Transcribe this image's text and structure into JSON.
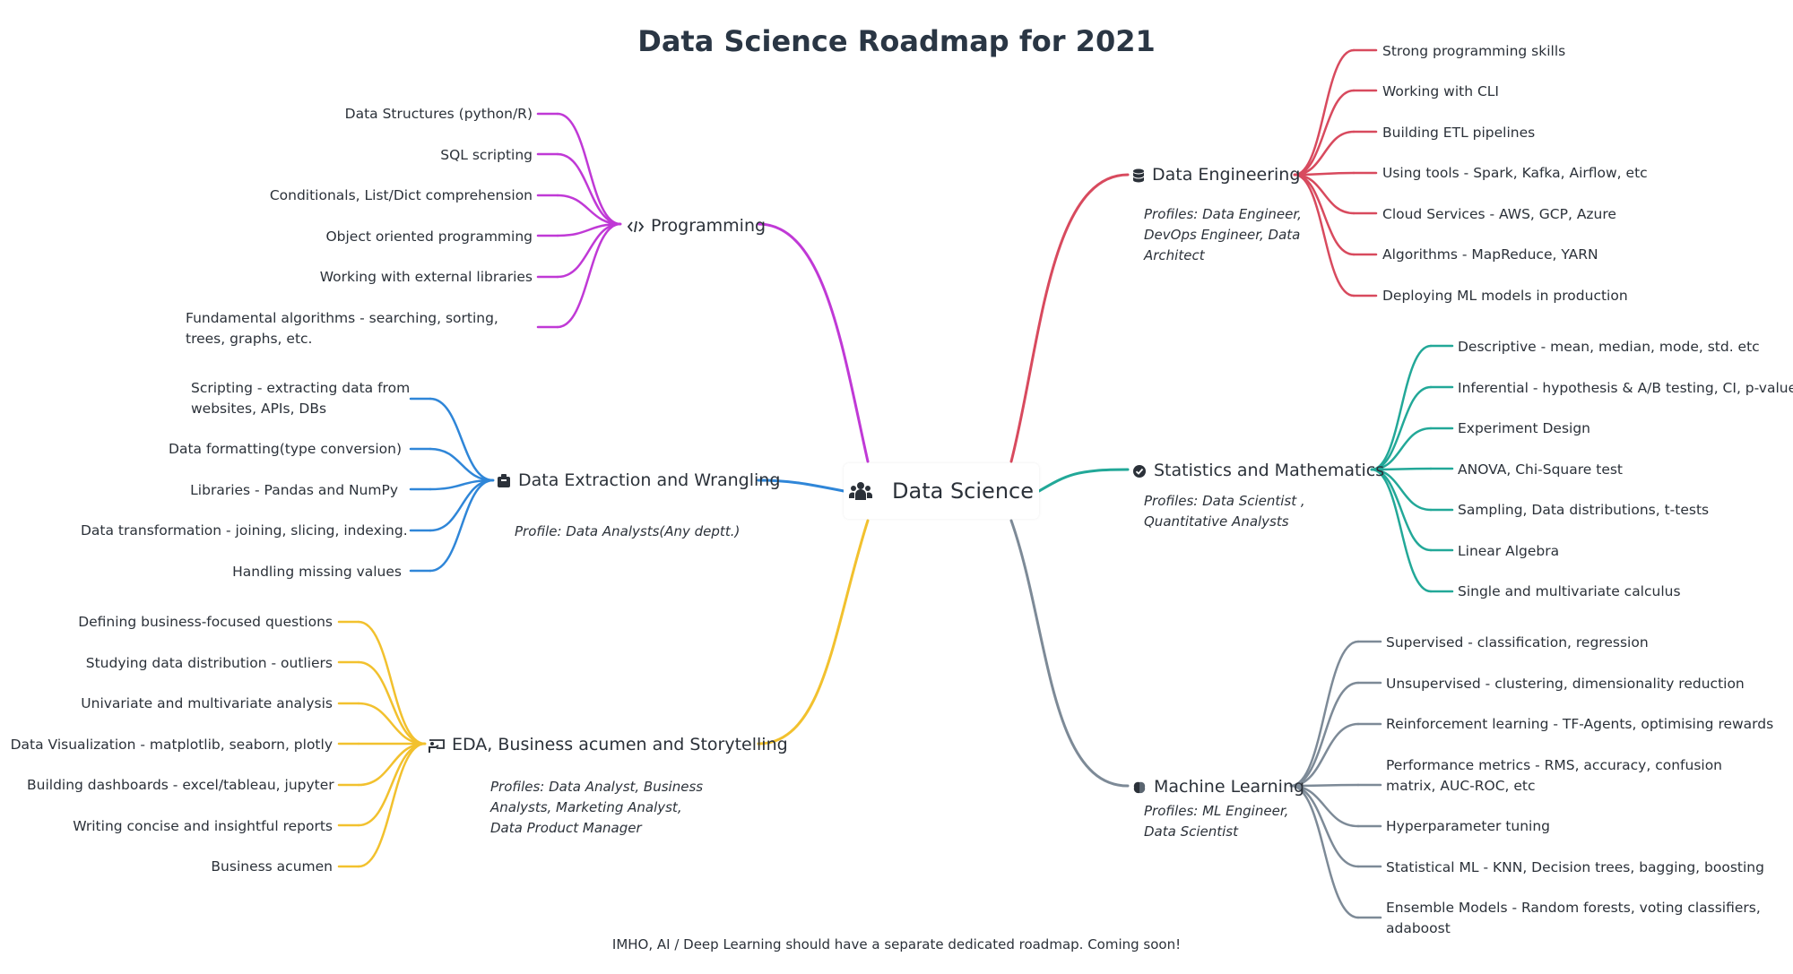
{
  "title": "Data Science Roadmap for 2021",
  "center": {
    "label": "Data Science",
    "icon": "people-group-icon"
  },
  "footer": "IMHO, AI / Deep Learning should have a separate dedicated roadmap. Coming soon!",
  "colors": {
    "programming": "#c039d6",
    "extraction": "#2f86d8",
    "eda": "#f2c12e",
    "engineering": "#d84a5e",
    "statistics": "#22a898",
    "ml": "#7d8a97",
    "text": "#2b3139",
    "title": "#2a3644"
  },
  "branches": {
    "programming": {
      "label": "Programming",
      "icon": "code-icon",
      "items": [
        "Data Structures (python/R)",
        "SQL scripting",
        "Conditionals, List/Dict comprehension",
        "Object oriented programming",
        "Working with external libraries",
        "Fundamental algorithms - searching, sorting, trees, graphs, etc."
      ]
    },
    "extraction": {
      "label": "Data Extraction and Wrangling",
      "icon": "archive-icon",
      "profile": "Profile: Data Analysts(Any deptt.)",
      "items": [
        "Scripting - extracting data from websites, APIs, DBs",
        "Data formatting(type conversion)",
        "Libraries - Pandas and NumPy",
        "Data transformation - joining, slicing, indexing.",
        "Handling missing values"
      ]
    },
    "eda": {
      "label": "EDA, Business acumen and Storytelling",
      "icon": "presentation-icon",
      "profile": "Profiles: Data Analyst, Business Analysts, Marketing Analyst, Data Product Manager",
      "items": [
        "Defining business-focused questions",
        "Studying data distribution - outliers",
        "Univariate and multivariate analysis",
        "Data Visualization - matplotlib, seaborn, plotly",
        "Building dashboards - excel/tableau, jupyter",
        "Writing concise and insightful reports",
        "Business acumen"
      ]
    },
    "engineering": {
      "label": "Data Engineering",
      "icon": "database-icon",
      "profile": "Profiles: Data Engineer, DevOps Engineer, Data Architect",
      "items": [
        "Strong programming skills",
        "Working with CLI",
        "Building ETL pipelines",
        "Using tools - Spark, Kafka, Airflow, etc",
        "Cloud Services - AWS, GCP, Azure",
        "Algorithms - MapReduce, YARN",
        "Deploying ML models in production"
      ]
    },
    "statistics": {
      "label": "Statistics and Mathematics",
      "icon": "check-circle-icon",
      "profile": "Profiles: Data Scientist , Quantitative Analysts",
      "items": [
        "Descriptive - mean, median, mode, std. etc",
        "Inferential - hypothesis & A/B testing, CI, p-value",
        "Experiment Design",
        "ANOVA, Chi-Square test",
        "Sampling, Data distributions, t-tests",
        "Linear Algebra",
        "Single and multivariate calculus"
      ]
    },
    "ml": {
      "label": "Machine Learning",
      "icon": "brain-icon",
      "profile": "Profiles: ML Engineer, Data Scientist",
      "items": [
        "Supervised - classification, regression",
        "Unsupervised - clustering, dimensionality reduction",
        "Reinforcement learning - TF-Agents, optimising rewards",
        "Performance metrics - RMS, accuracy, confusion matrix, AUC-ROC, etc",
        "Hyperparameter tuning",
        "Statistical ML - KNN, Decision trees, bagging, boosting",
        "Ensemble Models - Random forests, voting classifiers, adaboost"
      ]
    }
  }
}
